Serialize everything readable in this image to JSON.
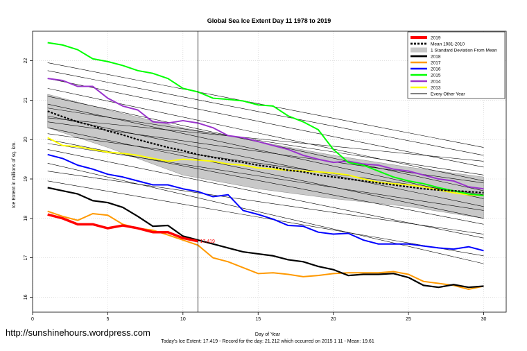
{
  "chart_data": {
    "type": "line",
    "title": "Global Sea Ice Extent Day 11 1978 to 2019",
    "xlabel": "Day of Year",
    "ylabel": "Ice Extent in millions of sq. km.",
    "xlim": [
      0,
      31.5
    ],
    "ylim": [
      15.62,
      22.75
    ],
    "x_ticks": [
      0,
      5,
      10,
      15,
      20,
      25,
      30
    ],
    "y_ticks": [
      16,
      17,
      18,
      19,
      20,
      21,
      22
    ],
    "grid": true,
    "legend_position": "top-right",
    "current_day_marker": 11,
    "end_label": "17.419",
    "footer": "Today's Ice Extent: 17.419  -  Record for the day: 21.212 which occurred on 2015 1 11  -  Mean: 19.61",
    "watermark": "http://sunshinehours.wordpress.com",
    "band": {
      "name": "1 Standard Deviation From Mean",
      "x": [
        1,
        5,
        10,
        15,
        20,
        25,
        30
      ],
      "upper": [
        21.15,
        20.75,
        20.3,
        19.95,
        19.6,
        19.3,
        19.05
      ],
      "lower": [
        20.3,
        19.8,
        19.1,
        18.75,
        18.5,
        18.3,
        18.0
      ]
    },
    "series": [
      {
        "name": "2019",
        "color": "#ff0000",
        "width": 3.5,
        "dash": "",
        "x": [
          1,
          2,
          3,
          4,
          5,
          6,
          7,
          8,
          9,
          10,
          11
        ],
        "y": [
          18.1,
          18.0,
          17.85,
          17.85,
          17.75,
          17.82,
          17.75,
          17.65,
          17.65,
          17.5,
          17.42
        ]
      },
      {
        "name": "Mean 1981-2010",
        "color": "#000000",
        "width": 2.2,
        "dash": "3,2",
        "x": [
          1,
          2,
          3,
          4,
          5,
          6,
          7,
          8,
          9,
          10,
          11,
          12,
          13,
          14,
          15,
          16,
          17,
          18,
          19,
          20,
          21,
          22,
          23,
          24,
          25,
          26,
          27,
          28,
          29,
          30
        ],
        "y": [
          20.72,
          20.58,
          20.45,
          20.35,
          20.22,
          20.12,
          20.0,
          19.9,
          19.8,
          19.72,
          19.62,
          19.55,
          19.48,
          19.42,
          19.35,
          19.3,
          19.22,
          19.18,
          19.1,
          19.05,
          19.0,
          18.95,
          18.9,
          18.85,
          18.8,
          18.75,
          18.72,
          18.7,
          18.68,
          18.65
        ]
      },
      {
        "name": "2018",
        "color": "#000000",
        "width": 2.2,
        "dash": "",
        "x": [
          1,
          2,
          3,
          4,
          5,
          6,
          7,
          8,
          9,
          10,
          11,
          12,
          13,
          14,
          15,
          16,
          17,
          18,
          19,
          20,
          21,
          22,
          23,
          24,
          25,
          26,
          27,
          28,
          29,
          30
        ],
        "y": [
          18.78,
          18.7,
          18.62,
          18.45,
          18.4,
          18.28,
          18.05,
          17.8,
          17.82,
          17.55,
          17.45,
          17.35,
          17.25,
          17.15,
          17.1,
          17.05,
          16.95,
          16.9,
          16.78,
          16.7,
          16.55,
          16.58,
          16.58,
          16.6,
          16.5,
          16.3,
          16.25,
          16.32,
          16.25,
          16.28
        ]
      },
      {
        "name": "2017",
        "color": "#ff9900",
        "width": 2.0,
        "dash": "",
        "x": [
          1,
          2,
          3,
          4,
          5,
          6,
          7,
          8,
          9,
          10,
          11,
          12,
          13,
          14,
          15,
          16,
          17,
          18,
          19,
          20,
          21,
          22,
          23,
          24,
          25,
          26,
          27,
          28,
          29,
          30
        ],
        "y": [
          18.18,
          18.05,
          17.95,
          18.12,
          18.08,
          17.85,
          17.75,
          17.7,
          17.58,
          17.45,
          17.32,
          17.0,
          16.9,
          16.75,
          16.6,
          16.62,
          16.58,
          16.52,
          16.55,
          16.6,
          16.62,
          16.62,
          16.62,
          16.65,
          16.58,
          16.4,
          16.35,
          16.3,
          16.2,
          16.28
        ]
      },
      {
        "name": "2016",
        "color": "#0000ff",
        "width": 2.0,
        "dash": "",
        "x": [
          1,
          2,
          3,
          4,
          5,
          6,
          7,
          8,
          9,
          10,
          11,
          12,
          13,
          14,
          15,
          16,
          17,
          18,
          19,
          20,
          21,
          22,
          23,
          24,
          25,
          26,
          27,
          28,
          29,
          30
        ],
        "y": [
          19.62,
          19.52,
          19.35,
          19.25,
          19.12,
          19.05,
          18.95,
          18.85,
          18.85,
          18.75,
          18.68,
          18.55,
          18.6,
          18.2,
          18.1,
          17.98,
          17.82,
          17.8,
          17.65,
          17.6,
          17.62,
          17.45,
          17.35,
          17.35,
          17.35,
          17.3,
          17.25,
          17.22,
          17.28,
          17.18
        ]
      },
      {
        "name": "2015",
        "color": "#00ff00",
        "width": 2.0,
        "dash": "",
        "x": [
          1,
          2,
          3,
          4,
          5,
          6,
          7,
          8,
          9,
          10,
          11,
          12,
          13,
          14,
          15,
          16,
          17,
          18,
          19,
          20,
          21,
          22,
          23,
          24,
          25,
          26,
          27,
          28,
          29,
          30
        ],
        "y": [
          22.46,
          22.4,
          22.28,
          22.05,
          21.98,
          21.88,
          21.75,
          21.68,
          21.55,
          21.3,
          21.21,
          21.05,
          21.02,
          20.98,
          20.88,
          20.85,
          20.6,
          20.45,
          20.25,
          19.75,
          19.42,
          19.35,
          19.2,
          19.05,
          18.95,
          18.88,
          18.78,
          18.7,
          18.62,
          18.58
        ]
      },
      {
        "name": "2014",
        "color": "#9933cc",
        "width": 2.0,
        "dash": "",
        "x": [
          1,
          2,
          3,
          4,
          5,
          6,
          7,
          8,
          9,
          10,
          11,
          12,
          13,
          14,
          15,
          16,
          17,
          18,
          19,
          20,
          21,
          22,
          23,
          24,
          25,
          26,
          27,
          28,
          29,
          30
        ],
        "y": [
          21.55,
          21.5,
          21.35,
          21.35,
          21.05,
          20.85,
          20.75,
          20.45,
          20.42,
          20.48,
          20.42,
          20.3,
          20.1,
          20.05,
          19.95,
          19.85,
          19.75,
          19.6,
          19.5,
          19.42,
          19.45,
          19.38,
          19.35,
          19.25,
          19.2,
          19.1,
          19.0,
          18.95,
          18.8,
          18.75
        ]
      },
      {
        "name": "2013",
        "color": "#ffff00",
        "width": 2.0,
        "dash": "",
        "x": [
          1,
          2,
          3,
          4,
          5,
          6,
          7,
          8,
          9,
          10,
          11,
          12,
          13,
          14,
          15,
          16,
          17,
          18,
          19,
          20,
          21,
          22,
          23,
          24,
          25,
          26,
          27,
          28,
          29,
          30
        ],
        "y": [
          20.05,
          19.85,
          19.82,
          19.75,
          19.68,
          19.65,
          19.6,
          19.52,
          19.45,
          19.5,
          19.48,
          19.45,
          19.38,
          19.35,
          19.28,
          19.25,
          19.22,
          19.2,
          19.18,
          19.15,
          19.1,
          19.0,
          18.92,
          18.88,
          18.85,
          18.8,
          18.72,
          18.65,
          18.6,
          18.58
        ]
      },
      {
        "name": "Every Other Year",
        "color": "#000000",
        "width": 0.6,
        "dash": "",
        "x": [
          1,
          30
        ],
        "y": [
          21.75,
          19.6
        ]
      },
      {
        "name": "",
        "color": "#000000",
        "width": 0.6,
        "dash": "",
        "x": [
          1,
          30
        ],
        "y": [
          21.55,
          19.3
        ]
      },
      {
        "name": "",
        "color": "#000000",
        "width": 0.6,
        "dash": "",
        "x": [
          1,
          30
        ],
        "y": [
          21.3,
          18.95
        ]
      },
      {
        "name": "",
        "color": "#000000",
        "width": 0.6,
        "dash": "",
        "x": [
          1,
          30
        ],
        "y": [
          21.1,
          18.7
        ]
      },
      {
        "name": "",
        "color": "#000000",
        "width": 0.6,
        "dash": "",
        "x": [
          1,
          30
        ],
        "y": [
          20.9,
          18.5
        ]
      },
      {
        "name": "",
        "color": "#000000",
        "width": 0.6,
        "dash": "",
        "x": [
          1,
          30
        ],
        "y": [
          20.8,
          19.1
        ]
      },
      {
        "name": "",
        "color": "#000000",
        "width": 0.6,
        "dash": "",
        "x": [
          1,
          30
        ],
        "y": [
          20.6,
          18.3
        ]
      },
      {
        "name": "",
        "color": "#000000",
        "width": 0.6,
        "dash": "",
        "x": [
          1,
          30
        ],
        "y": [
          20.45,
          18.9
        ]
      },
      {
        "name": "",
        "color": "#000000",
        "width": 0.6,
        "dash": "",
        "x": [
          1,
          30
        ],
        "y": [
          20.3,
          18.0
        ]
      },
      {
        "name": "",
        "color": "#000000",
        "width": 0.6,
        "dash": "",
        "x": [
          1,
          30
        ],
        "y": [
          20.15,
          18.6
        ]
      },
      {
        "name": "",
        "color": "#000000",
        "width": 0.6,
        "dash": "",
        "x": [
          1,
          30
        ],
        "y": [
          20.0,
          17.85
        ]
      },
      {
        "name": "",
        "color": "#000000",
        "width": 0.6,
        "dash": "",
        "x": [
          1,
          30
        ],
        "y": [
          19.9,
          18.2
        ]
      },
      {
        "name": "",
        "color": "#000000",
        "width": 0.6,
        "dash": "",
        "x": [
          1,
          30
        ],
        "y": [
          19.75,
          17.5
        ]
      },
      {
        "name": "",
        "color": "#000000",
        "width": 0.6,
        "dash": "",
        "x": [
          1,
          30
        ],
        "y": [
          19.4,
          16.85
        ]
      },
      {
        "name": "",
        "color": "#000000",
        "width": 0.6,
        "dash": "",
        "x": [
          1,
          30
        ],
        "y": [
          19.2,
          17.6
        ]
      },
      {
        "name": "",
        "color": "#000000",
        "width": 0.6,
        "dash": "",
        "x": [
          1,
          30
        ],
        "y": [
          18.95,
          17.05
        ]
      },
      {
        "name": "",
        "color": "#000000",
        "width": 0.6,
        "dash": "",
        "x": [
          1,
          30
        ],
        "y": [
          21.95,
          19.8
        ]
      },
      {
        "name": "",
        "color": "#000000",
        "width": 0.6,
        "dash": "",
        "x": [
          1,
          30
        ],
        "y": [
          20.55,
          19.45
        ]
      }
    ]
  }
}
